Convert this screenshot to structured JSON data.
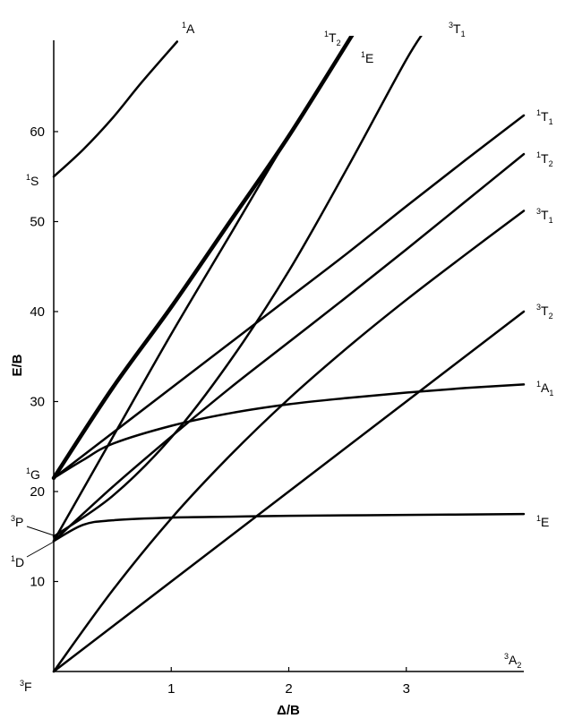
{
  "chart_data": {
    "type": "line",
    "title": "",
    "xlabel": "Δ/B",
    "ylabel": "E/B",
    "xlim": [
      0,
      4
    ],
    "ylim": [
      0,
      70
    ],
    "grid": false,
    "x_ticks": [
      1,
      2,
      3
    ],
    "y_ticks": [
      10,
      20,
      30,
      40,
      50,
      60
    ],
    "free_ion_terms": [
      {
        "sup": "3",
        "main": "F",
        "sub": "",
        "y": 0
      },
      {
        "sup": "3",
        "main": "P",
        "sub": "",
        "y": 15
      },
      {
        "sup": "1",
        "main": "D",
        "sub": "",
        "y": 14.5
      },
      {
        "sup": "1",
        "main": "G",
        "sub": "",
        "y": 21.5
      },
      {
        "sup": "1",
        "main": "S",
        "sub": "",
        "y": 55
      }
    ],
    "series": [
      {
        "sup": "3",
        "main": "A",
        "sub": "2",
        "x": [
          0,
          4
        ],
        "y": [
          0,
          0
        ],
        "width": 1.5
      },
      {
        "sup": "3",
        "main": "T",
        "sub": "2",
        "x": [
          0,
          1,
          2,
          3,
          4
        ],
        "y": [
          0,
          10,
          20,
          30,
          40
        ],
        "width": 2.5
      },
      {
        "sup": "3",
        "main": "T",
        "sub": "1",
        "x": [
          0,
          0.5,
          1,
          1.5,
          2,
          2.5,
          3,
          3.5,
          4
        ],
        "y": [
          0,
          9,
          17,
          24,
          30.3,
          36,
          41.3,
          46.3,
          51.2
        ],
        "width": 2.5
      },
      {
        "sup": "3",
        "main": "T",
        "sub": "1",
        "x": [
          0,
          0.5,
          1,
          1.5,
          2,
          2.5,
          3,
          3.2
        ],
        "y": [
          15,
          19.5,
          26,
          34.5,
          44.5,
          56,
          68,
          72
        ],
        "width": 2.5
      },
      {
        "sup": "1",
        "main": "E",
        "sub": "",
        "x": [
          0,
          0.25,
          0.5,
          1,
          1.5,
          2,
          3,
          4
        ],
        "y": [
          14.5,
          16.3,
          16.8,
          17.1,
          17.2,
          17.3,
          17.4,
          17.5
        ],
        "width": 2.5
      },
      {
        "sup": "1",
        "main": "T",
        "sub": "2",
        "x": [
          0,
          0.5,
          1,
          1.5,
          2,
          2.5,
          3,
          3.5,
          4
        ],
        "y": [
          14.5,
          20.5,
          26.1,
          31.5,
          36.6,
          41.7,
          46.9,
          52.2,
          57.5
        ],
        "width": 2.5
      },
      {
        "sup": "1",
        "main": "E",
        "sub": "",
        "x": [
          0,
          0.5,
          1,
          1.5,
          2,
          2.6
        ],
        "y": [
          14.5,
          26,
          37.5,
          48.5,
          59.5,
          72
        ],
        "width": 2.5
      },
      {
        "sup": "1",
        "main": "T",
        "sub": "2",
        "x": [
          0,
          0.5,
          1,
          1.5,
          2,
          2.6
        ],
        "y": [
          21.5,
          31.5,
          40.5,
          50,
          59.5,
          72
        ],
        "width": 4.5
      },
      {
        "sup": "1",
        "main": "T",
        "sub": "1",
        "x": [
          0,
          0.5,
          1,
          1.5,
          2,
          2.5,
          3,
          3.5,
          4
        ],
        "y": [
          21.5,
          26.5,
          31.5,
          36.5,
          41.5,
          46.5,
          51.7,
          56.8,
          61.8
        ],
        "width": 2.5
      },
      {
        "sup": "1",
        "main": "A",
        "sub": "1",
        "x": [
          0,
          0.25,
          0.5,
          1,
          1.5,
          2,
          2.5,
          3,
          3.5,
          4
        ],
        "y": [
          21.5,
          23.5,
          25.3,
          27.3,
          28.7,
          29.7,
          30.4,
          31,
          31.5,
          31.9
        ],
        "width": 2.5
      },
      {
        "sup": "1",
        "main": "A",
        "sub": "",
        "x": [
          0,
          0.25,
          0.5,
          0.75,
          1.05
        ],
        "y": [
          55,
          58,
          61.5,
          65.5,
          70
        ],
        "width": 2.5
      }
    ],
    "labels": [
      {
        "sup": "1",
        "main": "A",
        "sub": ""
      },
      {
        "sup": "1",
        "main": "T",
        "sub": "2"
      },
      {
        "sup": "1",
        "main": "E",
        "sub": ""
      },
      {
        "sup": "3",
        "main": "T",
        "sub": "1"
      },
      {
        "sup": "1",
        "main": "T",
        "sub": "1"
      },
      {
        "sup": "1",
        "main": "T",
        "sub": "2"
      },
      {
        "sup": "3",
        "main": "T",
        "sub": "1"
      },
      {
        "sup": "3",
        "main": "T",
        "sub": "2"
      },
      {
        "sup": "1",
        "main": "A",
        "sub": "1"
      },
      {
        "sup": "1",
        "main": "E",
        "sub": ""
      },
      {
        "sup": "3",
        "main": "A",
        "sub": "2"
      }
    ]
  }
}
